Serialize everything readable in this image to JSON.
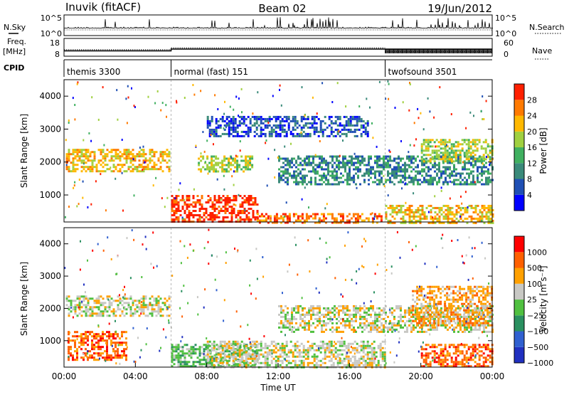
{
  "header": {
    "radar": "Inuvik (fitACF)",
    "beam": "Beam 02",
    "date": "19/Jun/2012"
  },
  "chart_data": [
    {
      "type": "line",
      "panel": "nsky",
      "left_label": "N.Sky",
      "right_label": "N.Search",
      "left_ticks": [
        "10^5",
        "10^0"
      ],
      "right_ticks": [
        "10^5",
        "10^0"
      ],
      "note": "noise level time series (log scale)"
    },
    {
      "type": "line",
      "panel": "freq",
      "left_label": "Freq.",
      "left_unit": "[MHz]",
      "right_label": "Nave",
      "left_ticks": [
        18,
        8
      ],
      "right_ticks": [
        60,
        0
      ],
      "series": [
        {
          "name": "Freq",
          "values_hours": [
            0,
            6,
            6,
            24
          ],
          "values": [
            11,
            11,
            12,
            12
          ]
        },
        {
          "name": "Nave",
          "segments": [
            {
              "from": 0,
              "to": 6,
              "value": 22
            },
            {
              "from": 6,
              "to": 18,
              "value": 28
            },
            {
              "from": 18,
              "to": 24,
              "value": 15
            }
          ]
        }
      ]
    },
    {
      "type": "table",
      "panel": "cpid",
      "label": "CPID",
      "segments": [
        {
          "start_hour": 0,
          "name": "themis 3300"
        },
        {
          "start_hour": 6,
          "name": "normal (fast) 151"
        },
        {
          "start_hour": 18,
          "name": "twofsound 3501"
        }
      ]
    },
    {
      "type": "heatmap",
      "panel": "power",
      "ylabel": "Slant Range [km]",
      "yticks": [
        1000,
        2000,
        3000,
        4000
      ],
      "ylim": [
        180,
        4500
      ],
      "xlim_hours": [
        0,
        24
      ],
      "colorbar": {
        "label": "Power [dB]",
        "ticks": [
          "4",
          "8",
          "12",
          "16",
          "20",
          "24",
          "28"
        ],
        "colors": [
          "#0000ff",
          "#1f4fb4",
          "#3a8a7a",
          "#40b060",
          "#a0d040",
          "#ffb800",
          "#ff7a00",
          "#ff2000"
        ]
      },
      "bands": [
        {
          "x": [
            0.1,
            5.9
          ],
          "r": [
            1750,
            2400
          ],
          "level": 5
        },
        {
          "x": [
            6.0,
            10.8
          ],
          "r": [
            180,
            1000
          ],
          "level": 7
        },
        {
          "x": [
            10.8,
            17.8
          ],
          "r": [
            180,
            450
          ],
          "level": 6
        },
        {
          "x": [
            7.5,
            10.5
          ],
          "r": [
            1700,
            2200
          ],
          "level": 4
        },
        {
          "x": [
            12.0,
            24.0
          ],
          "r": [
            1300,
            2200
          ],
          "level": 2
        },
        {
          "x": [
            20.0,
            24.0
          ],
          "r": [
            2000,
            2700
          ],
          "level": 4
        },
        {
          "x": [
            18.0,
            24.0
          ],
          "r": [
            180,
            700
          ],
          "level": 5
        },
        {
          "x": [
            8.0,
            17.0
          ],
          "r": [
            2800,
            3400
          ],
          "level": 1
        }
      ]
    },
    {
      "type": "heatmap",
      "panel": "velocity",
      "ylabel": "Slant Range [km]",
      "yticks": [
        1000,
        2000,
        3000,
        4000
      ],
      "ylim": [
        180,
        4500
      ],
      "xlim_hours": [
        0,
        24
      ],
      "xticks": [
        "00:00",
        "04:00",
        "08:00",
        "12:00",
        "16:00",
        "20:00",
        "00:00"
      ],
      "xlabel": "Time UT",
      "colorbar": {
        "label": "Velocity [m s⁻¹]",
        "ticks": [
          "1000",
          "500",
          "100",
          "25",
          "−25",
          "−100",
          "−500",
          "−1000"
        ],
        "colors": [
          "#2030c0",
          "#3060d0",
          "#2a9060",
          "#50c040",
          "#c8c8c4",
          "#ffa000",
          "#ff6000",
          "#ff0000"
        ]
      },
      "bands": [
        {
          "x": [
            0.1,
            5.9
          ],
          "r": [
            1800,
            2400
          ],
          "level": 4
        },
        {
          "x": [
            0.2,
            3.5
          ],
          "r": [
            400,
            1300
          ],
          "level": 6
        },
        {
          "x": [
            6.0,
            10.8
          ],
          "r": [
            180,
            900
          ],
          "level": 3
        },
        {
          "x": [
            8.0,
            18.0
          ],
          "r": [
            180,
            1000
          ],
          "level": 4
        },
        {
          "x": [
            12.0,
            24.0
          ],
          "r": [
            1300,
            2100
          ],
          "level": 4
        },
        {
          "x": [
            19.5,
            24.0
          ],
          "r": [
            1500,
            2700
          ],
          "level": 5
        },
        {
          "x": [
            20.0,
            24.0
          ],
          "r": [
            180,
            900
          ],
          "level": 6
        }
      ]
    }
  ]
}
